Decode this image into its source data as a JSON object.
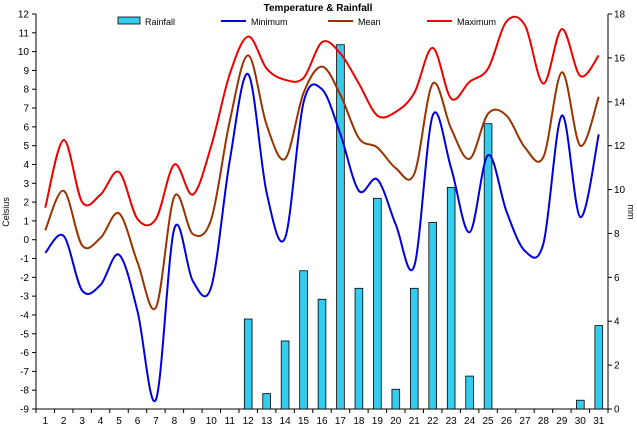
{
  "chart_data": {
    "type": "line",
    "title": "Temperature & Rainfall",
    "ylabel_left": "Celsius",
    "ylabel_right": "mm",
    "ylim_left": [
      -9,
      12
    ],
    "ylim_right": [
      0,
      18
    ],
    "y_ticks_left": [
      "-9",
      "-8",
      "-7",
      "-6",
      "-5",
      "-4",
      "-3",
      "-2",
      "-1",
      "0",
      "1",
      "2",
      "3",
      "4",
      "5",
      "6",
      "7",
      "8",
      "9",
      "10",
      "11",
      "12"
    ],
    "y_ticks_right": [
      "0",
      "2",
      "4",
      "6",
      "8",
      "10",
      "12",
      "14",
      "16",
      "18"
    ],
    "categories": [
      "1",
      "2",
      "3",
      "4",
      "5",
      "6",
      "7",
      "8",
      "9",
      "10",
      "11",
      "12",
      "13",
      "14",
      "15",
      "16",
      "17",
      "18",
      "19",
      "20",
      "21",
      "22",
      "23",
      "24",
      "25",
      "26",
      "27",
      "28",
      "29",
      "30",
      "31"
    ],
    "grid": false,
    "legend_position": "top",
    "series": [
      {
        "name": "Rainfall",
        "kind": "bar",
        "axis": "right",
        "color": "#33ccee",
        "values": [
          0,
          0,
          0,
          0,
          0,
          0,
          0,
          0,
          0,
          0,
          0,
          4.1,
          0.7,
          3.1,
          6.3,
          5.0,
          16.6,
          5.5,
          9.6,
          0.9,
          5.5,
          8.5,
          10.1,
          1.5,
          13.0,
          0,
          0,
          0,
          0,
          0.4,
          3.8
        ]
      },
      {
        "name": "Minimum",
        "kind": "line",
        "axis": "left",
        "color": "#0000dd",
        "values": [
          -0.7,
          0.2,
          -2.7,
          -2.4,
          -0.8,
          -3.8,
          -8.5,
          0.6,
          -2.2,
          -2.5,
          4.2,
          8.8,
          2.5,
          0.1,
          7.3,
          8.0,
          5.6,
          2.6,
          3.2,
          0.8,
          -1.4,
          6.6,
          3.8,
          0.4,
          4.5,
          1.5,
          -0.6,
          -0.2,
          6.6,
          1.2,
          5.6
        ]
      },
      {
        "name": "Mean",
        "kind": "line",
        "axis": "left",
        "color": "#993300",
        "values": [
          0.5,
          2.6,
          -0.3,
          0.1,
          1.4,
          -1.2,
          -3.6,
          2.3,
          0.3,
          1.1,
          6.3,
          9.8,
          6.1,
          4.3,
          7.8,
          9.2,
          7.7,
          5.4,
          4.9,
          3.8,
          3.5,
          8.3,
          5.9,
          4.3,
          6.7,
          6.6,
          4.9,
          4.4,
          8.9,
          5.0,
          7.6
        ]
      },
      {
        "name": "Maximum",
        "kind": "line",
        "axis": "left",
        "color": "#ee0000",
        "values": [
          1.7,
          5.3,
          2.0,
          2.4,
          3.6,
          1.1,
          1.1,
          4.0,
          2.4,
          5.0,
          8.8,
          10.8,
          9.1,
          8.5,
          8.6,
          10.5,
          9.9,
          8.3,
          6.6,
          6.8,
          7.8,
          10.2,
          7.5,
          8.4,
          9.1,
          11.6,
          11.4,
          8.3,
          11.2,
          8.7,
          9.8
        ]
      }
    ]
  }
}
